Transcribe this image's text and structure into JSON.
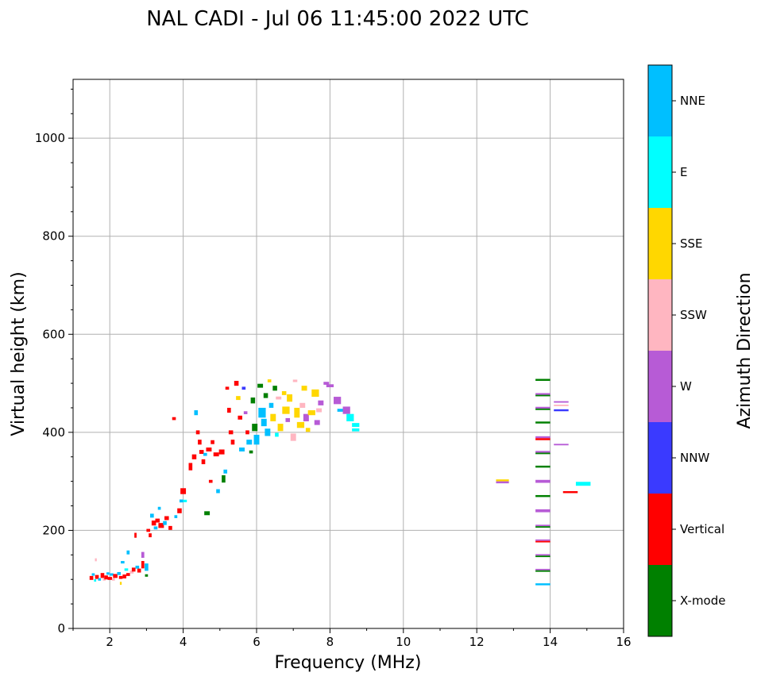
{
  "chart_data": {
    "type": "scatter",
    "title": "NAL CADI - Jul 06 11:45:00 2022 UTC",
    "xlabel": "Frequency (MHz)",
    "ylabel": "Virtual height (km)",
    "xlim": [
      1,
      16
    ],
    "ylim": [
      0,
      1120
    ],
    "xticks": [
      2,
      4,
      6,
      8,
      10,
      12,
      14,
      16
    ],
    "yticks": [
      0,
      200,
      400,
      600,
      800,
      1000
    ],
    "grid": true,
    "colorbar": {
      "label": "Azimuth Direction",
      "categories": [
        "X-mode",
        "Vertical",
        "NNW",
        "W",
        "SSW",
        "SSE",
        "E",
        "NNE"
      ],
      "colors": [
        "#008000",
        "#ff0000",
        "#3a3aff",
        "#b75bd6",
        "#ffb6c1",
        "#ffd700",
        "#00ffff",
        "#00bfff"
      ]
    },
    "points_format": "[frequency_MHz, height_km, category_index, freq_span_MHz, height_span_km]",
    "points": [
      [
        1.5,
        103,
        1,
        0.1,
        8
      ],
      [
        1.55,
        110,
        7,
        0.08,
        5
      ],
      [
        1.6,
        98,
        6,
        0.06,
        5
      ],
      [
        1.62,
        140,
        4,
        0.05,
        6
      ],
      [
        1.65,
        105,
        1,
        0.1,
        8
      ],
      [
        1.72,
        100,
        7,
        0.08,
        5
      ],
      [
        1.8,
        108,
        1,
        0.1,
        10
      ],
      [
        1.85,
        100,
        4,
        0.08,
        5
      ],
      [
        1.9,
        104,
        1,
        0.1,
        8
      ],
      [
        1.95,
        112,
        7,
        0.08,
        5
      ],
      [
        2.0,
        102,
        1,
        0.12,
        6
      ],
      [
        2.05,
        110,
        7,
        0.1,
        5
      ],
      [
        2.1,
        100,
        4,
        0.08,
        5
      ],
      [
        2.15,
        107,
        1,
        0.12,
        8
      ],
      [
        2.25,
        112,
        7,
        0.1,
        6
      ],
      [
        2.3,
        104,
        1,
        0.1,
        6
      ],
      [
        2.3,
        92,
        5,
        0.05,
        6
      ],
      [
        2.35,
        135,
        7,
        0.1,
        5
      ],
      [
        2.4,
        106,
        1,
        0.1,
        8
      ],
      [
        2.45,
        120,
        6,
        0.1,
        5
      ],
      [
        2.5,
        155,
        7,
        0.08,
        8
      ],
      [
        2.5,
        110,
        1,
        0.1,
        6
      ],
      [
        2.6,
        115,
        4,
        0.1,
        6
      ],
      [
        2.65,
        120,
        1,
        0.1,
        8
      ],
      [
        2.7,
        190,
        1,
        0.06,
        10
      ],
      [
        2.75,
        125,
        7,
        0.1,
        6
      ],
      [
        2.8,
        118,
        1,
        0.1,
        8
      ],
      [
        2.9,
        150,
        3,
        0.08,
        12
      ],
      [
        2.9,
        130,
        1,
        0.08,
        15
      ],
      [
        3.0,
        125,
        7,
        0.1,
        15
      ],
      [
        3.0,
        108,
        0,
        0.08,
        5
      ],
      [
        3.05,
        200,
        1,
        0.1,
        6
      ],
      [
        3.1,
        190,
        1,
        0.08,
        8
      ],
      [
        3.15,
        230,
        7,
        0.1,
        8
      ],
      [
        3.2,
        215,
        1,
        0.12,
        10
      ],
      [
        3.25,
        205,
        7,
        0.1,
        6
      ],
      [
        3.3,
        220,
        1,
        0.12,
        8
      ],
      [
        3.35,
        245,
        7,
        0.08,
        6
      ],
      [
        3.4,
        210,
        1,
        0.15,
        10
      ],
      [
        3.5,
        215,
        7,
        0.1,
        8
      ],
      [
        3.55,
        225,
        1,
        0.12,
        8
      ],
      [
        3.65,
        205,
        1,
        0.1,
        8
      ],
      [
        3.75,
        428,
        1,
        0.1,
        6
      ],
      [
        3.8,
        228,
        7,
        0.08,
        6
      ],
      [
        3.9,
        240,
        1,
        0.12,
        10
      ],
      [
        3.95,
        260,
        7,
        0.1,
        6
      ],
      [
        4.0,
        280,
        1,
        0.15,
        12
      ],
      [
        4.05,
        260,
        6,
        0.1,
        5
      ],
      [
        4.2,
        330,
        1,
        0.1,
        15
      ],
      [
        4.3,
        350,
        1,
        0.12,
        10
      ],
      [
        4.35,
        440,
        7,
        0.1,
        10
      ],
      [
        4.4,
        400,
        1,
        0.1,
        8
      ],
      [
        4.45,
        380,
        1,
        0.1,
        10
      ],
      [
        4.5,
        360,
        1,
        0.12,
        8
      ],
      [
        4.55,
        340,
        1,
        0.1,
        10
      ],
      [
        4.6,
        355,
        7,
        0.1,
        6
      ],
      [
        4.65,
        235,
        0,
        0.15,
        8
      ],
      [
        4.7,
        365,
        1,
        0.15,
        8
      ],
      [
        4.75,
        300,
        1,
        0.1,
        6
      ],
      [
        4.8,
        380,
        1,
        0.1,
        8
      ],
      [
        4.9,
        355,
        1,
        0.15,
        8
      ],
      [
        4.95,
        280,
        7,
        0.1,
        8
      ],
      [
        5.05,
        360,
        1,
        0.15,
        10
      ],
      [
        5.1,
        305,
        0,
        0.1,
        15
      ],
      [
        5.15,
        320,
        7,
        0.1,
        8
      ],
      [
        5.2,
        490,
        1,
        0.1,
        6
      ],
      [
        5.25,
        445,
        1,
        0.1,
        10
      ],
      [
        5.3,
        400,
        1,
        0.12,
        8
      ],
      [
        5.35,
        380,
        1,
        0.1,
        10
      ],
      [
        5.45,
        500,
        1,
        0.12,
        10
      ],
      [
        5.5,
        470,
        5,
        0.12,
        8
      ],
      [
        5.55,
        430,
        1,
        0.12,
        8
      ],
      [
        5.6,
        365,
        7,
        0.15,
        8
      ],
      [
        5.65,
        490,
        2,
        0.1,
        6
      ],
      [
        5.7,
        440,
        3,
        0.1,
        6
      ],
      [
        5.75,
        400,
        1,
        0.1,
        8
      ],
      [
        5.8,
        380,
        7,
        0.15,
        10
      ],
      [
        5.85,
        360,
        0,
        0.1,
        6
      ],
      [
        5.9,
        465,
        0,
        0.12,
        12
      ],
      [
        5.95,
        410,
        0,
        0.15,
        15
      ],
      [
        6.0,
        385,
        7,
        0.15,
        20
      ],
      [
        6.1,
        495,
        0,
        0.15,
        8
      ],
      [
        6.15,
        440,
        7,
        0.2,
        20
      ],
      [
        6.2,
        420,
        7,
        0.15,
        15
      ],
      [
        6.25,
        475,
        0,
        0.12,
        10
      ],
      [
        6.3,
        400,
        7,
        0.15,
        15
      ],
      [
        6.35,
        505,
        5,
        0.1,
        6
      ],
      [
        6.4,
        455,
        7,
        0.12,
        10
      ],
      [
        6.45,
        430,
        5,
        0.15,
        15
      ],
      [
        6.5,
        490,
        0,
        0.12,
        10
      ],
      [
        6.55,
        395,
        6,
        0.1,
        8
      ],
      [
        6.6,
        470,
        4,
        0.15,
        6
      ],
      [
        6.65,
        410,
        5,
        0.15,
        15
      ],
      [
        6.75,
        480,
        5,
        0.12,
        8
      ],
      [
        6.8,
        445,
        5,
        0.2,
        15
      ],
      [
        6.85,
        425,
        3,
        0.12,
        8
      ],
      [
        6.9,
        470,
        5,
        0.15,
        15
      ],
      [
        7.0,
        390,
        4,
        0.15,
        15
      ],
      [
        7.05,
        505,
        4,
        0.12,
        5
      ],
      [
        7.1,
        440,
        5,
        0.15,
        20
      ],
      [
        7.2,
        415,
        5,
        0.2,
        12
      ],
      [
        7.25,
        455,
        4,
        0.15,
        10
      ],
      [
        7.3,
        490,
        5,
        0.15,
        10
      ],
      [
        7.35,
        430,
        3,
        0.15,
        15
      ],
      [
        7.4,
        405,
        5,
        0.12,
        8
      ],
      [
        7.5,
        440,
        5,
        0.2,
        10
      ],
      [
        7.6,
        480,
        5,
        0.2,
        15
      ],
      [
        7.65,
        420,
        3,
        0.15,
        10
      ],
      [
        7.7,
        445,
        4,
        0.15,
        8
      ],
      [
        7.75,
        460,
        3,
        0.15,
        10
      ],
      [
        7.9,
        500,
        3,
        0.15,
        6
      ],
      [
        8.0,
        495,
        3,
        0.2,
        6
      ],
      [
        8.2,
        465,
        3,
        0.2,
        15
      ],
      [
        8.3,
        445,
        7,
        0.2,
        6
      ],
      [
        8.45,
        445,
        3,
        0.2,
        15
      ],
      [
        8.55,
        430,
        6,
        0.2,
        15
      ],
      [
        8.7,
        415,
        6,
        0.2,
        8
      ],
      [
        8.7,
        405,
        6,
        0.2,
        6
      ],
      [
        12.7,
        302,
        5,
        0.35,
        4
      ],
      [
        12.7,
        298,
        3,
        0.35,
        4
      ],
      [
        13.8,
        507,
        0,
        0.4,
        4
      ],
      [
        13.8,
        478,
        3,
        0.4,
        4
      ],
      [
        13.8,
        475,
        0,
        0.4,
        3
      ],
      [
        13.8,
        450,
        3,
        0.4,
        4
      ],
      [
        13.8,
        447,
        0,
        0.4,
        3
      ],
      [
        13.8,
        420,
        0,
        0.4,
        4
      ],
      [
        13.8,
        390,
        3,
        0.4,
        4
      ],
      [
        13.8,
        386,
        1,
        0.4,
        4
      ],
      [
        13.8,
        360,
        3,
        0.4,
        4
      ],
      [
        13.8,
        357,
        0,
        0.4,
        3
      ],
      [
        13.8,
        330,
        0,
        0.4,
        4
      ],
      [
        13.8,
        300,
        3,
        0.4,
        6
      ],
      [
        13.8,
        270,
        0,
        0.4,
        4
      ],
      [
        13.8,
        240,
        3,
        0.4,
        6
      ],
      [
        13.8,
        210,
        3,
        0.4,
        3
      ],
      [
        13.8,
        207,
        0,
        0.4,
        3
      ],
      [
        13.8,
        180,
        3,
        0.4,
        3
      ],
      [
        13.8,
        177,
        1,
        0.4,
        3
      ],
      [
        13.8,
        150,
        3,
        0.4,
        3
      ],
      [
        13.8,
        147,
        0,
        0.4,
        3
      ],
      [
        13.8,
        120,
        3,
        0.4,
        3
      ],
      [
        13.8,
        117,
        0,
        0.4,
        3
      ],
      [
        13.8,
        90,
        7,
        0.4,
        4
      ],
      [
        14.3,
        462,
        3,
        0.4,
        3
      ],
      [
        14.3,
        455,
        4,
        0.4,
        3
      ],
      [
        14.3,
        445,
        2,
        0.4,
        4
      ],
      [
        14.3,
        375,
        3,
        0.4,
        3
      ],
      [
        14.55,
        278,
        1,
        0.4,
        4
      ],
      [
        14.9,
        295,
        6,
        0.4,
        8
      ]
    ]
  }
}
